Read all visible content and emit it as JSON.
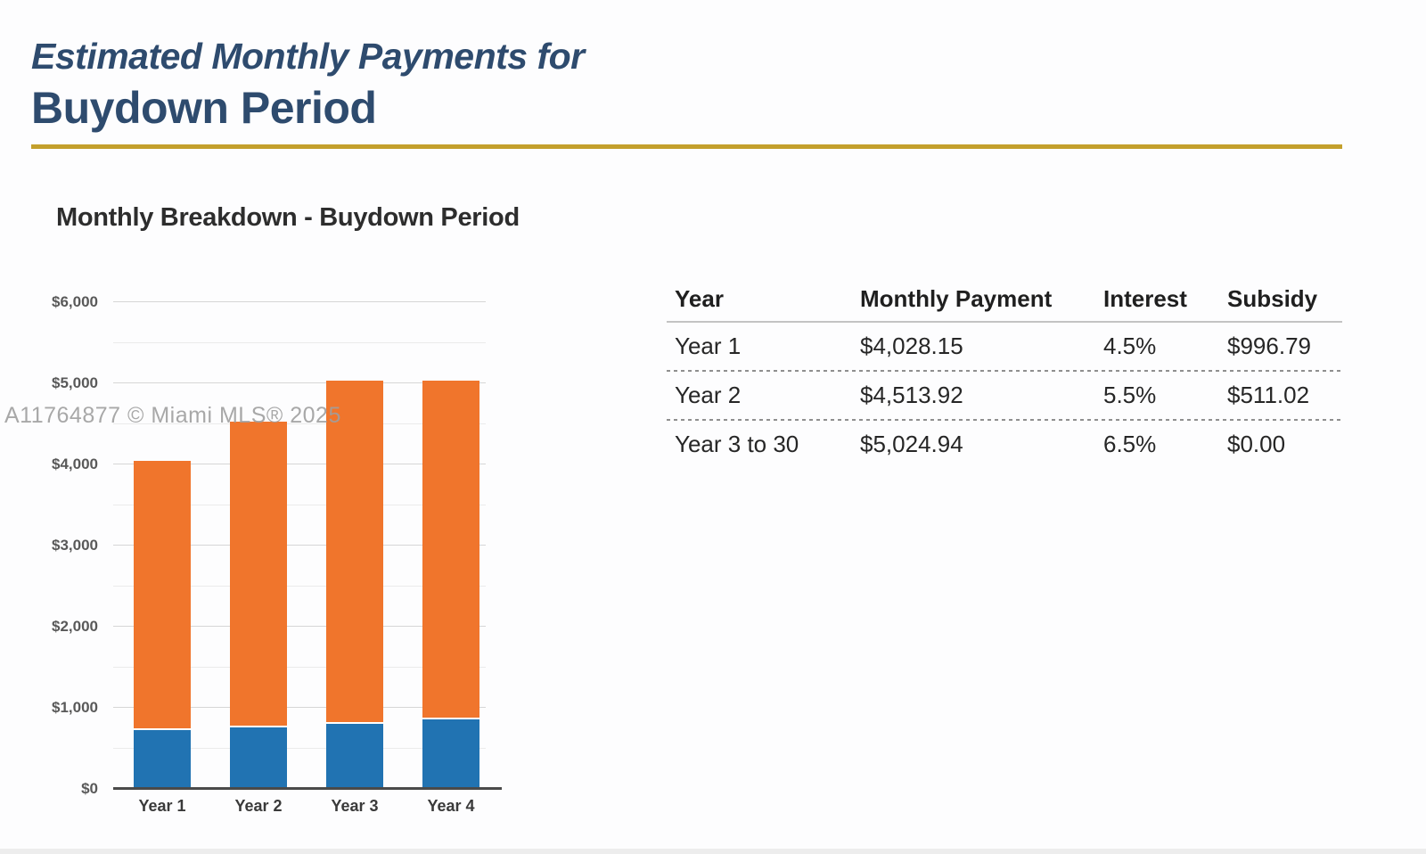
{
  "page": {
    "title_line1": "Estimated Monthly Payments for",
    "title_line2": "Buydown Period",
    "watermark": "A11764877 © Miami MLS® 2025"
  },
  "colors": {
    "navy": "#2e4b6e",
    "gold": "#c4a02c",
    "bar_orange": "#f0752c",
    "bar_blue": "#2173b2"
  },
  "chart": {
    "title": "Monthly Breakdown - Buydown Period"
  },
  "chart_data": {
    "type": "bar",
    "stacked": true,
    "title": "Monthly Breakdown - Buydown Period",
    "categories": [
      "Year 1",
      "Year 2",
      "Year 3",
      "Year 4"
    ],
    "series": [
      {
        "name": "blue segment (bottom)",
        "color": "#2173b2",
        "values": [
          715,
          750,
          795,
          850
        ]
      },
      {
        "name": "orange segment (top)",
        "color": "#f0752c",
        "values": [
          3313.15,
          3763.92,
          4229.94,
          4174.94
        ]
      }
    ],
    "totals": [
      4028.15,
      4513.92,
      5024.94,
      5024.94
    ],
    "y_axis": {
      "min": 0,
      "max": 6000,
      "major_interval": 1000,
      "minor_interval": 500,
      "tick_labels": [
        "$0",
        "$1,000",
        "$2,000",
        "$3,000",
        "$4,000",
        "$5,000",
        "$6,000"
      ]
    },
    "xlabel": "",
    "ylabel": "",
    "legend": "none",
    "grid": true
  },
  "table": {
    "headers": [
      "Year",
      "Monthly Payment",
      "Interest",
      "Subsidy"
    ],
    "rows": [
      [
        "Year 1",
        "$4,028.15",
        "4.5%",
        "$996.79"
      ],
      [
        "Year 2",
        "$4,513.92",
        "5.5%",
        "$511.02"
      ],
      [
        "Year 3 to 30",
        "$5,024.94",
        "6.5%",
        "$0.00"
      ]
    ]
  }
}
